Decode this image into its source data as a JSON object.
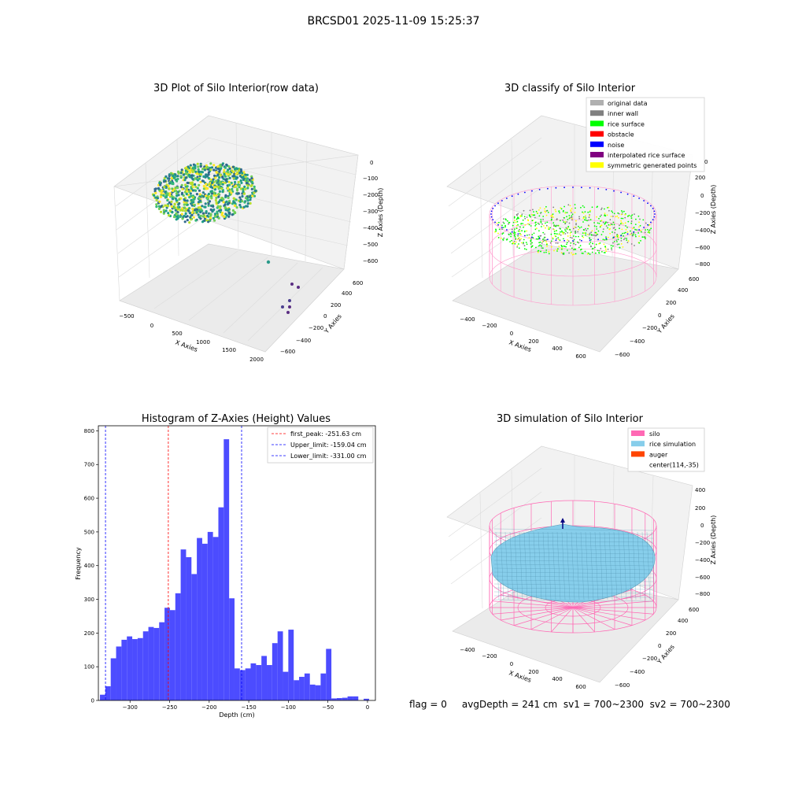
{
  "figure_title": "BRCSD01 2025-11-09 15:25:37",
  "status_line": "flag = 0     avgDepth = 241 cm  sv1 = 700~2300  sv2 = 700~2300",
  "colors": {
    "histogram_bar": "#4c4cff",
    "first_peak_line": "#ff0000",
    "limit_line": "#0000ff",
    "silo_wire": "#ff69b4",
    "rice_surface_fill": "#87ceeb",
    "classify_green": "#00ff00",
    "classify_yellow": "#ffff00",
    "classify_blue": "#0000ff",
    "classify_gray": "#808080"
  },
  "chart_data": [
    {
      "type": "scatter",
      "projection": "3d",
      "title": "3D Plot of Silo Interior(row data)",
      "xlabel": "X Axies",
      "ylabel": "Y Axies",
      "zlabel": "Z Axies (Depth)",
      "x_ticks": [
        "−500",
        "0",
        "500",
        "1000",
        "1500",
        "2000"
      ],
      "y_ticks": [
        "−600",
        "−400",
        "−200",
        "0",
        "200",
        "400",
        "600"
      ],
      "z_ticks": [
        "0",
        "−100",
        "−200",
        "−300",
        "−400",
        "−500",
        "−600"
      ],
      "colormap": "viridis"
    },
    {
      "type": "scatter",
      "projection": "3d",
      "title": "3D classify of Silo Interior",
      "xlabel": "X Axies",
      "ylabel": "Y Axies",
      "zlabel": "Z Axies (Depth)",
      "x_ticks": [
        "−400",
        "−200",
        "0",
        "200",
        "400",
        "600"
      ],
      "y_ticks": [
        "−600",
        "−400",
        "−200",
        "0",
        "200",
        "400",
        "600"
      ],
      "z_ticks": [
        "200",
        "0",
        "−200",
        "−400",
        "−600",
        "−800"
      ],
      "legend_position": "top-right",
      "legend": [
        {
          "label": "original data",
          "color": "#b0b0b0"
        },
        {
          "label": "inner wall",
          "color": "#808080"
        },
        {
          "label": "rice surface",
          "color": "#00ff00"
        },
        {
          "label": "obstacle",
          "color": "#ff0000"
        },
        {
          "label": "noise",
          "color": "#0000ff"
        },
        {
          "label": "interpolated rice surface",
          "color": "#800080"
        },
        {
          "label": "symmetric generated points",
          "color": "#ffff00"
        }
      ],
      "z_partial_tick": "0"
    },
    {
      "type": "bar",
      "title": "Histogram of Z-Axies (Height) Values",
      "xlabel": "Depth (cm)",
      "ylabel": "Frequency",
      "xlim": [
        -340,
        10
      ],
      "ylim": [
        0,
        815
      ],
      "x_ticks": [
        -300,
        -250,
        -200,
        -150,
        -100,
        -50,
        0
      ],
      "x_tick_labels": [
        "−300",
        "−250",
        "−200",
        "−150",
        "−100",
        "−50",
        "0"
      ],
      "y_ticks": [
        0,
        100,
        200,
        300,
        400,
        500,
        600,
        700,
        800
      ],
      "bin_start": -338,
      "bin_width": 6.8,
      "values": [
        17,
        42,
        125,
        160,
        180,
        190,
        182,
        185,
        205,
        218,
        215,
        232,
        275,
        268,
        318,
        448,
        425,
        375,
        482,
        465,
        500,
        485,
        573,
        775,
        303,
        95,
        90,
        95,
        110,
        105,
        132,
        105,
        170,
        205,
        85,
        210,
        60,
        70,
        80,
        47,
        45,
        80,
        153,
        6,
        7,
        8,
        12,
        12,
        0,
        5
      ],
      "vlines": [
        {
          "label": "first_peak: -251.63 cm",
          "x": -251.63,
          "color": "#ff0000"
        },
        {
          "label": "Upper_limit: -159.04 cm",
          "x": -159.04,
          "color": "#0000ff"
        },
        {
          "label": "Lower_limit: -331.00 cm",
          "x": -331.0,
          "color": "#0000ff"
        }
      ],
      "legend_position": "top-right"
    },
    {
      "type": "surface",
      "projection": "3d",
      "title": "3D simulation of Silo Interior",
      "xlabel": "X Axies",
      "ylabel": "Y Axies",
      "zlabel": "Z Axies (Depth)",
      "x_ticks": [
        "−400",
        "−200",
        "0",
        "200",
        "400",
        "600"
      ],
      "y_ticks": [
        "−600",
        "−400",
        "−200",
        "0",
        "200",
        "400",
        "600"
      ],
      "z_ticks": [
        "400",
        "200",
        "0",
        "−200",
        "−400",
        "−600",
        "−800"
      ],
      "legend_position": "top-right",
      "legend": [
        {
          "label": "silo",
          "color": "#ff69b4"
        },
        {
          "label": "rice simulation",
          "color": "#87ceeb"
        },
        {
          "label": "auger",
          "color": "#ff4500"
        },
        {
          "label": "center(114,-35)",
          "color": ""
        }
      ]
    }
  ]
}
